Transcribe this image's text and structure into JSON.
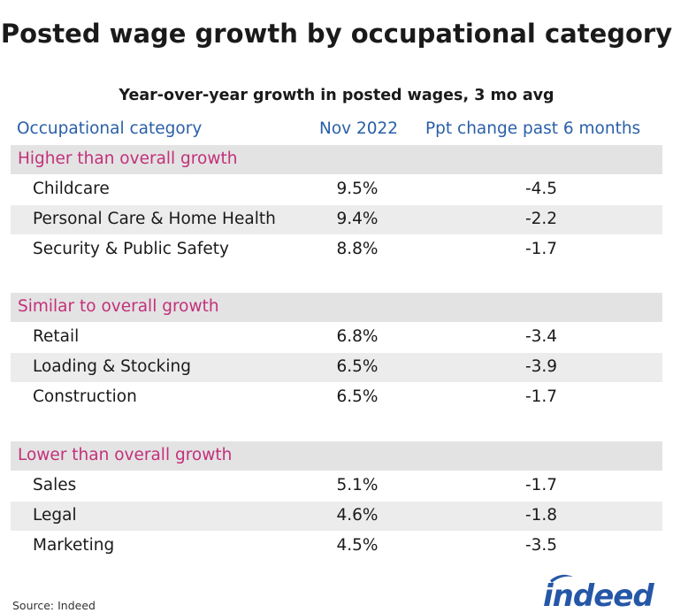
{
  "chart_data": {
    "type": "table",
    "title": "Posted wage growth by occupational category",
    "subtitle": "Year-over-year growth in posted wages, 3 mo avg",
    "columns": [
      "Occupational category",
      "Nov 2022",
      "Ppt change past 6 months"
    ],
    "groups": [
      {
        "label": "Higher than overall growth",
        "rows": [
          {
            "category": "Childcare",
            "nov2022": "9.5%",
            "ppt_change": "-4.5"
          },
          {
            "category": "Personal Care & Home Health",
            "nov2022": "9.4%",
            "ppt_change": "-2.2"
          },
          {
            "category": "Security & Public Safety",
            "nov2022": "8.8%",
            "ppt_change": "-1.7"
          }
        ]
      },
      {
        "label": "Similar to overall growth",
        "rows": [
          {
            "category": "Retail",
            "nov2022": "6.8%",
            "ppt_change": "-3.4"
          },
          {
            "category": "Loading & Stocking",
            "nov2022": "6.5%",
            "ppt_change": "-3.9"
          },
          {
            "category": "Construction",
            "nov2022": "6.5%",
            "ppt_change": "-1.7"
          }
        ]
      },
      {
        "label": "Lower than overall growth",
        "rows": [
          {
            "category": "Sales",
            "nov2022": "5.1%",
            "ppt_change": "-1.7"
          },
          {
            "category": "Legal",
            "nov2022": "4.6%",
            "ppt_change": "-1.8"
          },
          {
            "category": "Marketing",
            "nov2022": "4.5%",
            "ppt_change": "-3.5"
          }
        ]
      }
    ],
    "source": "Source: Indeed"
  },
  "brand": {
    "logo_text": "indeed",
    "logo_color": "#2557a7",
    "header_color": "#2a5fa8",
    "group_label_color": "#c2307a"
  }
}
